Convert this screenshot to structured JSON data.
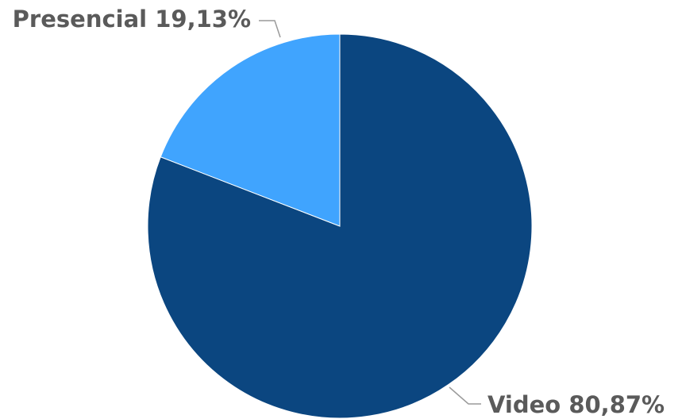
{
  "chart_data": {
    "type": "pie",
    "title": "",
    "series": [
      {
        "label": "Video",
        "value": 80.87,
        "display": "80,87%",
        "color": "#0b4680"
      },
      {
        "label": "Presencial",
        "value": 19.13,
        "display": "19,13%",
        "color": "#40a4fe"
      }
    ],
    "start_angle": "12 o'clock",
    "direction": "clockwise",
    "data_labels": "outside with leader lines",
    "legend": "none"
  }
}
